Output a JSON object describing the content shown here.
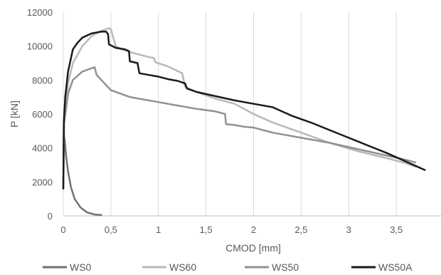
{
  "chart_data": {
    "type": "line",
    "xlabel": "CMOD [mm]",
    "ylabel": "P [kN]",
    "xlim": [
      0,
      4
    ],
    "ylim": [
      0,
      12000
    ],
    "x_ticks": [
      "0",
      "0,5",
      "1",
      "1,5",
      "2",
      "2,5",
      "3",
      "3,5"
    ],
    "x_tick_values": [
      0,
      0.5,
      1,
      1.5,
      2,
      2.5,
      3,
      3.5
    ],
    "y_ticks": [
      "0",
      "2000",
      "4000",
      "6000",
      "8000",
      "10000",
      "12000"
    ],
    "y_tick_values": [
      0,
      2000,
      4000,
      6000,
      8000,
      10000,
      12000
    ],
    "grid": "vertical",
    "legend_position": "bottom",
    "series": [
      {
        "name": "WS0",
        "color": "#707070",
        "width": 2.5,
        "points": [
          [
            0,
            1600
          ],
          [
            0.005,
            4800
          ],
          [
            0.015,
            4500
          ],
          [
            0.03,
            3500
          ],
          [
            0.05,
            2600
          ],
          [
            0.08,
            1700
          ],
          [
            0.12,
            1000
          ],
          [
            0.18,
            500
          ],
          [
            0.25,
            200
          ],
          [
            0.33,
            80
          ],
          [
            0.4,
            50
          ]
        ]
      },
      {
        "name": "WS60",
        "color": "#b8b8b8",
        "width": 2.5,
        "points": [
          [
            0,
            1800
          ],
          [
            0.01,
            5500
          ],
          [
            0.05,
            7800
          ],
          [
            0.1,
            9000
          ],
          [
            0.15,
            9500
          ],
          [
            0.2,
            10000
          ],
          [
            0.3,
            10600
          ],
          [
            0.4,
            10900
          ],
          [
            0.48,
            11050
          ],
          [
            0.5,
            11000
          ],
          [
            0.55,
            10000
          ],
          [
            0.62,
            9800
          ],
          [
            0.7,
            9650
          ],
          [
            0.8,
            9500
          ],
          [
            0.9,
            9350
          ],
          [
            0.95,
            9300
          ],
          [
            0.97,
            9050
          ],
          [
            1.1,
            8800
          ],
          [
            1.25,
            8400
          ],
          [
            1.28,
            7600
          ],
          [
            1.4,
            7300
          ],
          [
            1.5,
            7100
          ],
          [
            1.6,
            6900
          ],
          [
            1.7,
            6750
          ],
          [
            1.8,
            6600
          ],
          [
            1.9,
            6300
          ],
          [
            2.0,
            6000
          ],
          [
            2.2,
            5500
          ],
          [
            2.5,
            4900
          ],
          [
            2.8,
            4300
          ],
          [
            3.1,
            3800
          ],
          [
            3.4,
            3400
          ],
          [
            3.6,
            3100
          ],
          [
            3.7,
            2900
          ]
        ]
      },
      {
        "name": "WS50",
        "color": "#919191",
        "width": 2.5,
        "points": [
          [
            0,
            1700
          ],
          [
            0.01,
            5500
          ],
          [
            0.05,
            7200
          ],
          [
            0.1,
            8000
          ],
          [
            0.2,
            8500
          ],
          [
            0.3,
            8700
          ],
          [
            0.33,
            8750
          ],
          [
            0.35,
            8300
          ],
          [
            0.4,
            8000
          ],
          [
            0.45,
            7700
          ],
          [
            0.5,
            7400
          ],
          [
            0.6,
            7200
          ],
          [
            0.7,
            7000
          ],
          [
            0.8,
            6900
          ],
          [
            1.0,
            6700
          ],
          [
            1.2,
            6500
          ],
          [
            1.4,
            6300
          ],
          [
            1.6,
            6150
          ],
          [
            1.7,
            6000
          ],
          [
            1.71,
            5400
          ],
          [
            1.8,
            5350
          ],
          [
            1.9,
            5250
          ],
          [
            2.0,
            5200
          ],
          [
            2.2,
            4900
          ],
          [
            2.5,
            4600
          ],
          [
            2.8,
            4300
          ],
          [
            3.0,
            4050
          ],
          [
            3.2,
            3800
          ],
          [
            3.4,
            3550
          ],
          [
            3.6,
            3300
          ],
          [
            3.7,
            3150
          ]
        ]
      },
      {
        "name": "WS50A",
        "color": "#1a1a1a",
        "width": 2.5,
        "points": [
          [
            0,
            1600
          ],
          [
            0.005,
            5500
          ],
          [
            0.02,
            7000
          ],
          [
            0.05,
            8500
          ],
          [
            0.1,
            9800
          ],
          [
            0.15,
            10200
          ],
          [
            0.2,
            10500
          ],
          [
            0.3,
            10750
          ],
          [
            0.4,
            10850
          ],
          [
            0.45,
            10850
          ],
          [
            0.47,
            10700
          ],
          [
            0.48,
            10100
          ],
          [
            0.55,
            9900
          ],
          [
            0.65,
            9800
          ],
          [
            0.69,
            9700
          ],
          [
            0.7,
            9100
          ],
          [
            0.78,
            9000
          ],
          [
            0.8,
            8400
          ],
          [
            0.9,
            8300
          ],
          [
            1.0,
            8200
          ],
          [
            1.1,
            8050
          ],
          [
            1.2,
            7950
          ],
          [
            1.28,
            7800
          ],
          [
            1.3,
            7500
          ],
          [
            1.4,
            7300
          ],
          [
            1.6,
            7050
          ],
          [
            1.8,
            6800
          ],
          [
            2.0,
            6600
          ],
          [
            2.2,
            6400
          ],
          [
            2.4,
            5900
          ],
          [
            2.6,
            5500
          ],
          [
            2.8,
            5050
          ],
          [
            3.0,
            4600
          ],
          [
            3.2,
            4150
          ],
          [
            3.4,
            3700
          ],
          [
            3.6,
            3200
          ],
          [
            3.8,
            2700
          ]
        ]
      }
    ]
  }
}
